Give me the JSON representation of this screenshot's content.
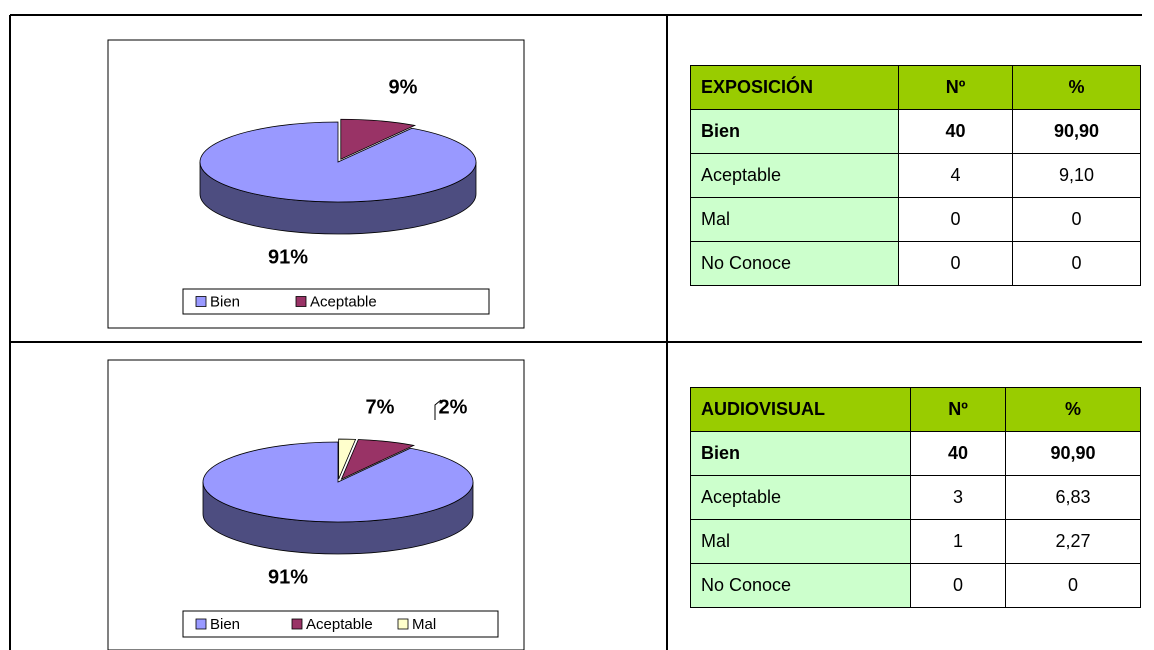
{
  "chart_data": [
    {
      "type": "pie",
      "categories": [
        "Bien",
        "Aceptable"
      ],
      "values": [
        91,
        9
      ],
      "value_labels": [
        "91%",
        "9%"
      ],
      "colors": [
        "#9999ff",
        "#993366"
      ]
    },
    {
      "type": "pie",
      "categories": [
        "Bien",
        "Aceptable",
        "Mal"
      ],
      "values": [
        91,
        7,
        2
      ],
      "value_labels": [
        "91%",
        "7%",
        "2%"
      ],
      "colors": [
        "#9999ff",
        "#993366",
        "#ffffcc"
      ]
    }
  ],
  "tables": [
    {
      "header": [
        "EXPOSICIÓN",
        "Nº",
        "%"
      ],
      "rows": [
        [
          "Bien",
          "40",
          "90,90"
        ],
        [
          "Aceptable",
          "4",
          "9,10"
        ],
        [
          "Mal",
          "0",
          "0"
        ],
        [
          "No Conoce",
          "0",
          "0"
        ]
      ]
    },
    {
      "header": [
        "AUDIOVISUAL",
        "Nº",
        "%"
      ],
      "rows": [
        [
          "Bien",
          "40",
          "90,90"
        ],
        [
          "Aceptable",
          "3",
          "6,83"
        ],
        [
          "Mal",
          "1",
          "2,27"
        ],
        [
          "No Conoce",
          "0",
          "0"
        ]
      ]
    }
  ]
}
